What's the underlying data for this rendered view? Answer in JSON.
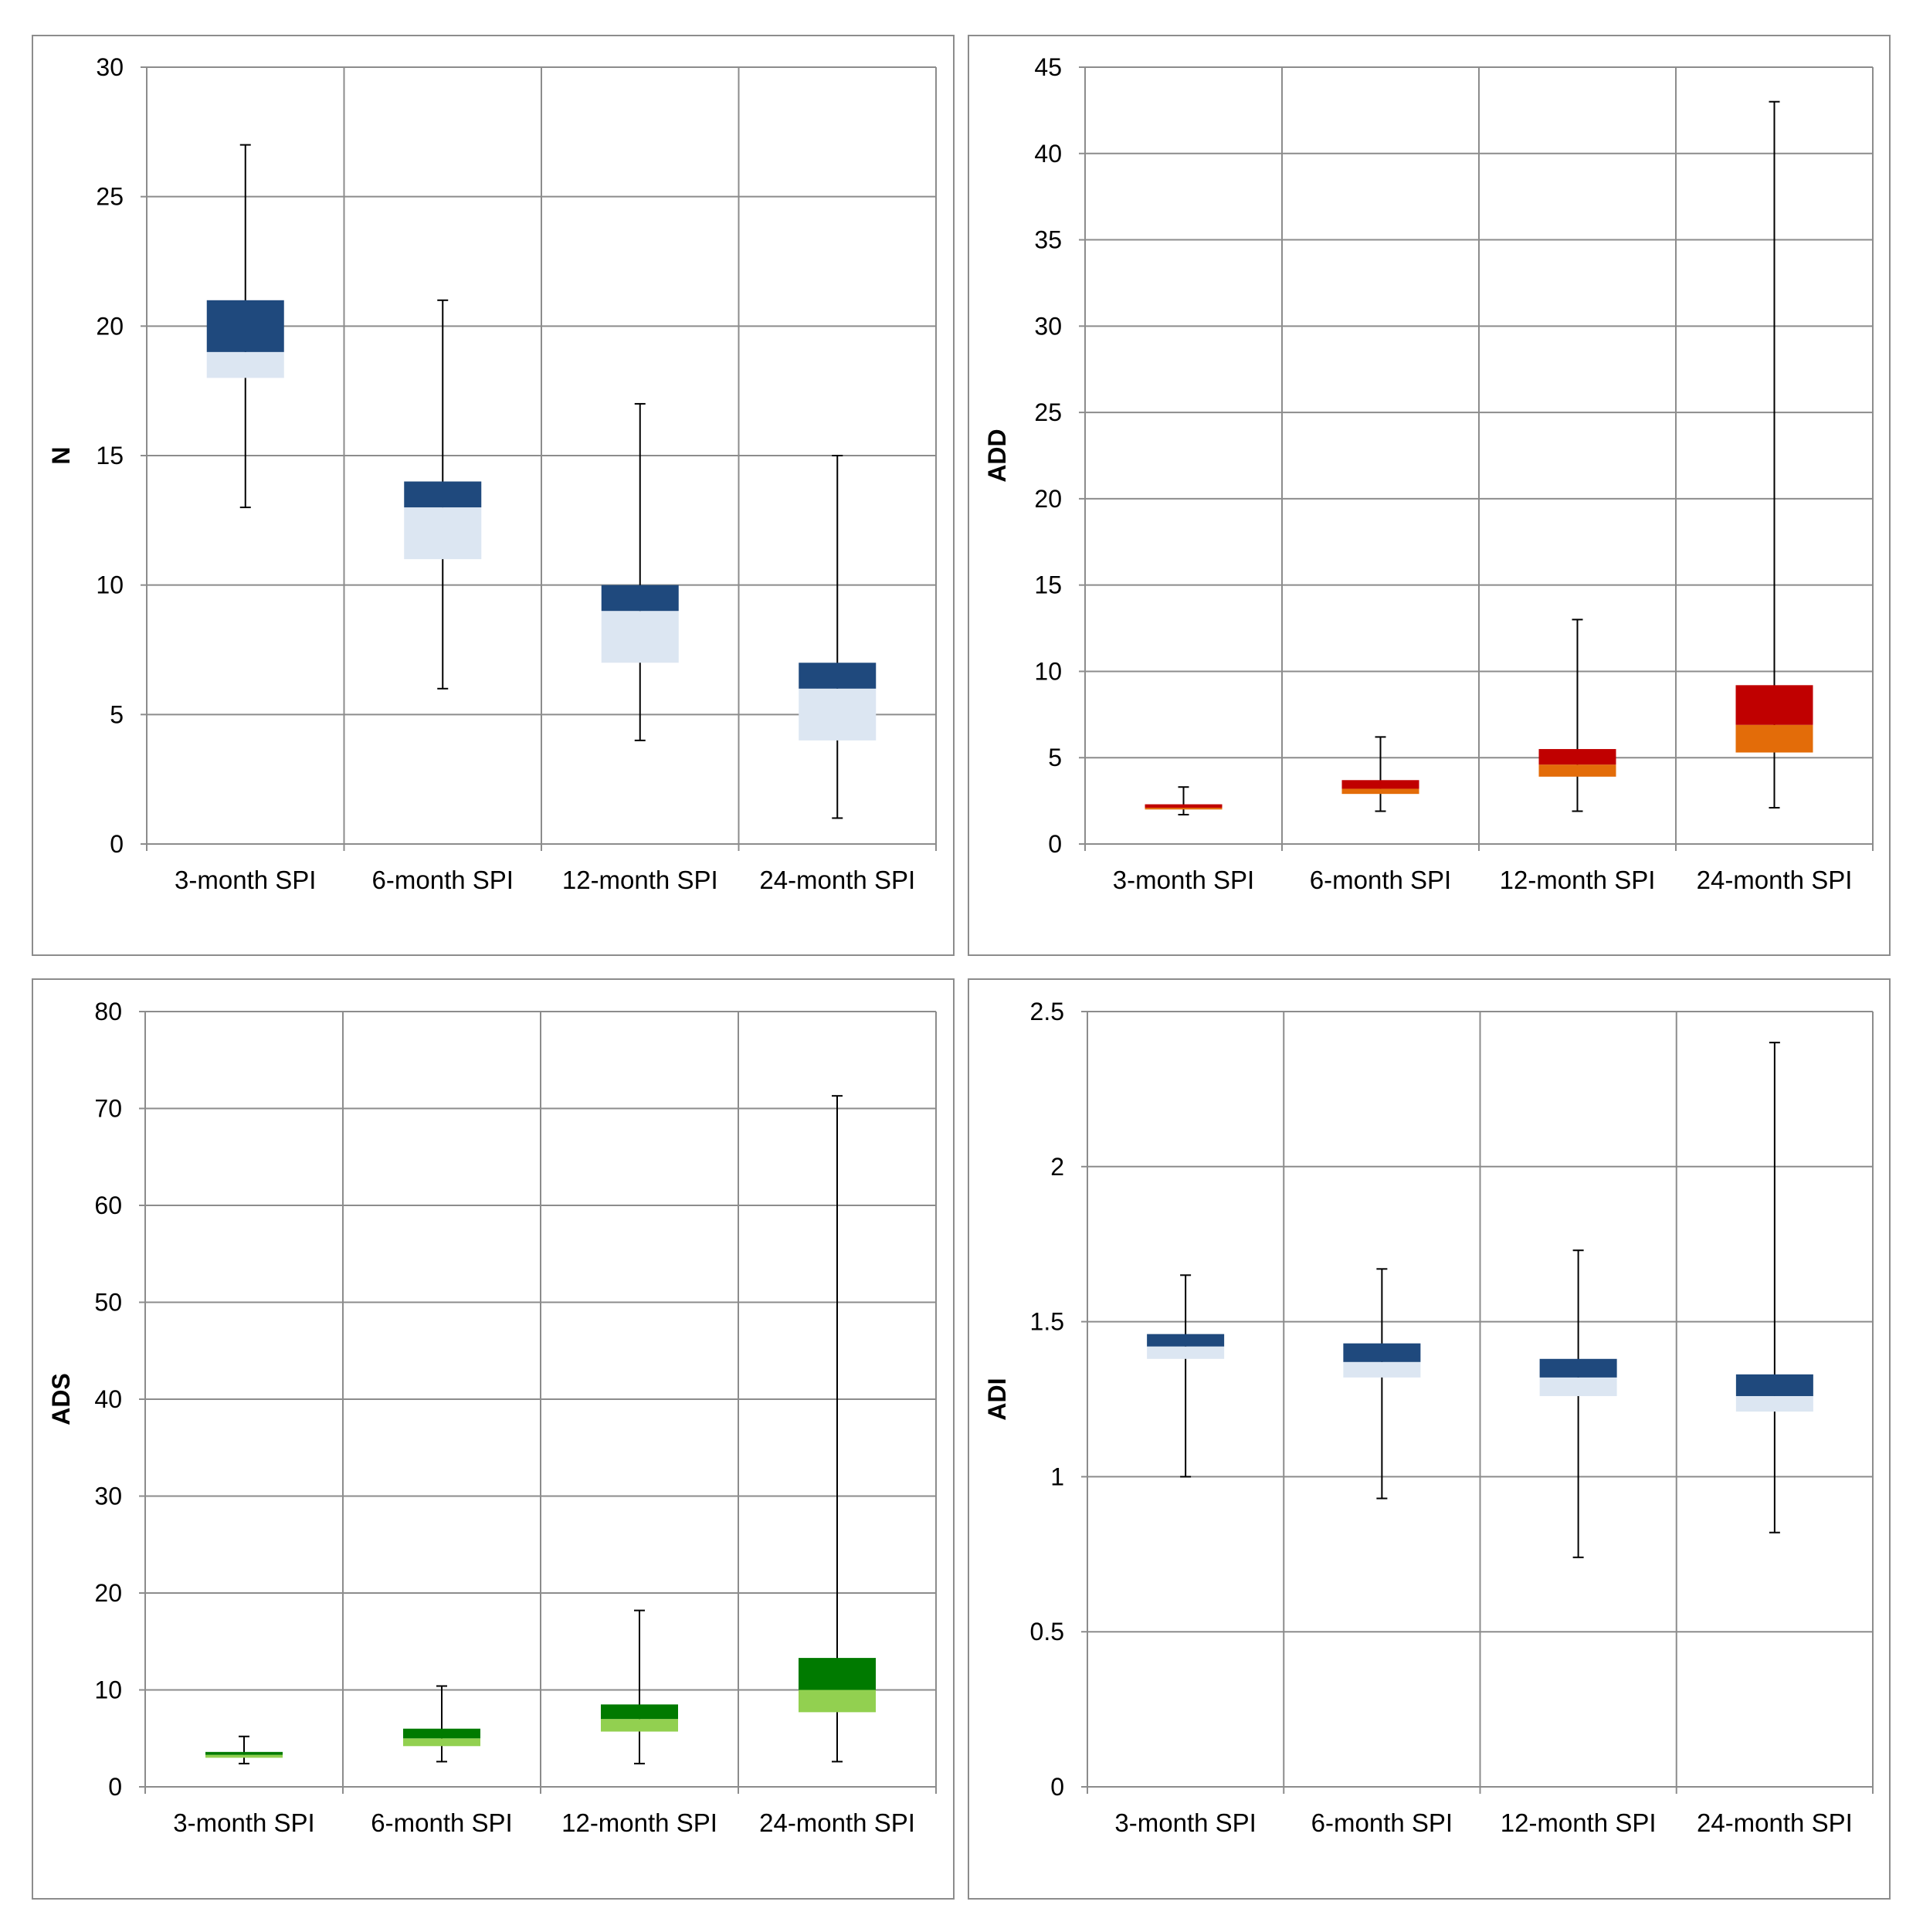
{
  "chart_data": [
    {
      "type": "boxplot",
      "ylabel": "N",
      "ylim": [
        0,
        30
      ],
      "yticks": [
        0,
        5,
        10,
        15,
        20,
        25,
        30
      ],
      "categories": [
        "3-month SPI",
        "6-month SPI",
        "12-month SPI",
        "24-month SPI"
      ],
      "colors": {
        "lower_box": "#dce6f2",
        "upper_box": "#1f497d",
        "whisker": "#000000"
      },
      "boxes": [
        {
          "min": 13,
          "q1": 18,
          "median": 19,
          "q3": 21,
          "max": 27
        },
        {
          "min": 6,
          "q1": 11,
          "median": 13,
          "q3": 14,
          "max": 21
        },
        {
          "min": 4,
          "q1": 7,
          "median": 9,
          "q3": 10,
          "max": 17
        },
        {
          "min": 1,
          "q1": 4,
          "median": 6,
          "q3": 7,
          "max": 15
        }
      ]
    },
    {
      "type": "boxplot",
      "ylabel": "ADD",
      "ylim": [
        0,
        45
      ],
      "yticks": [
        0,
        5,
        10,
        15,
        20,
        25,
        30,
        35,
        40,
        45
      ],
      "categories": [
        "3-month SPI",
        "6-month SPI",
        "12-month SPI",
        "24-month SPI"
      ],
      "colors": {
        "lower_box": "#e36c09",
        "upper_box": "#c00000",
        "whisker": "#000000"
      },
      "boxes": [
        {
          "min": 1.7,
          "q1": 2.0,
          "median": 2.1,
          "q3": 2.3,
          "max": 3.3
        },
        {
          "min": 1.9,
          "q1": 2.9,
          "median": 3.2,
          "q3": 3.7,
          "max": 6.2
        },
        {
          "min": 1.9,
          "q1": 3.9,
          "median": 4.6,
          "q3": 5.5,
          "max": 13.0
        },
        {
          "min": 2.1,
          "q1": 5.3,
          "median": 6.9,
          "q3": 9.2,
          "max": 43.0
        }
      ]
    },
    {
      "type": "boxplot",
      "ylabel": "ADS",
      "ylim": [
        0,
        80
      ],
      "yticks": [
        0,
        10,
        20,
        30,
        40,
        50,
        60,
        70,
        80
      ],
      "categories": [
        "3-month SPI",
        "6-month SPI",
        "12-month SPI",
        "24-month SPI"
      ],
      "colors": {
        "lower_box": "#92d050",
        "upper_box": "#007a00",
        "whisker": "#000000"
      },
      "boxes": [
        {
          "min": 2.4,
          "q1": 3.0,
          "median": 3.3,
          "q3": 3.6,
          "max": 5.2
        },
        {
          "min": 2.6,
          "q1": 4.2,
          "median": 5.0,
          "q3": 6.0,
          "max": 10.4
        },
        {
          "min": 2.4,
          "q1": 5.7,
          "median": 7.0,
          "q3": 8.5,
          "max": 18.2
        },
        {
          "min": 2.6,
          "q1": 7.7,
          "median": 10.0,
          "q3": 13.3,
          "max": 71.3
        }
      ]
    },
    {
      "type": "boxplot",
      "ylabel": "ADI",
      "ylim": [
        0,
        2.5
      ],
      "yticks": [
        0,
        0.5,
        1,
        1.5,
        2,
        2.5
      ],
      "categories": [
        "3-month SPI",
        "6-month SPI",
        "12-month SPI",
        "24-month SPI"
      ],
      "colors": {
        "lower_box": "#dce6f2",
        "upper_box": "#1f497d",
        "whisker": "#000000"
      },
      "boxes": [
        {
          "min": 1.0,
          "q1": 1.38,
          "median": 1.42,
          "q3": 1.46,
          "max": 1.65
        },
        {
          "min": 0.93,
          "q1": 1.32,
          "median": 1.37,
          "q3": 1.43,
          "max": 1.67
        },
        {
          "min": 0.74,
          "q1": 1.26,
          "median": 1.32,
          "q3": 1.38,
          "max": 1.73
        },
        {
          "min": 0.82,
          "q1": 1.21,
          "median": 1.26,
          "q3": 1.33,
          "max": 2.4
        }
      ]
    }
  ]
}
